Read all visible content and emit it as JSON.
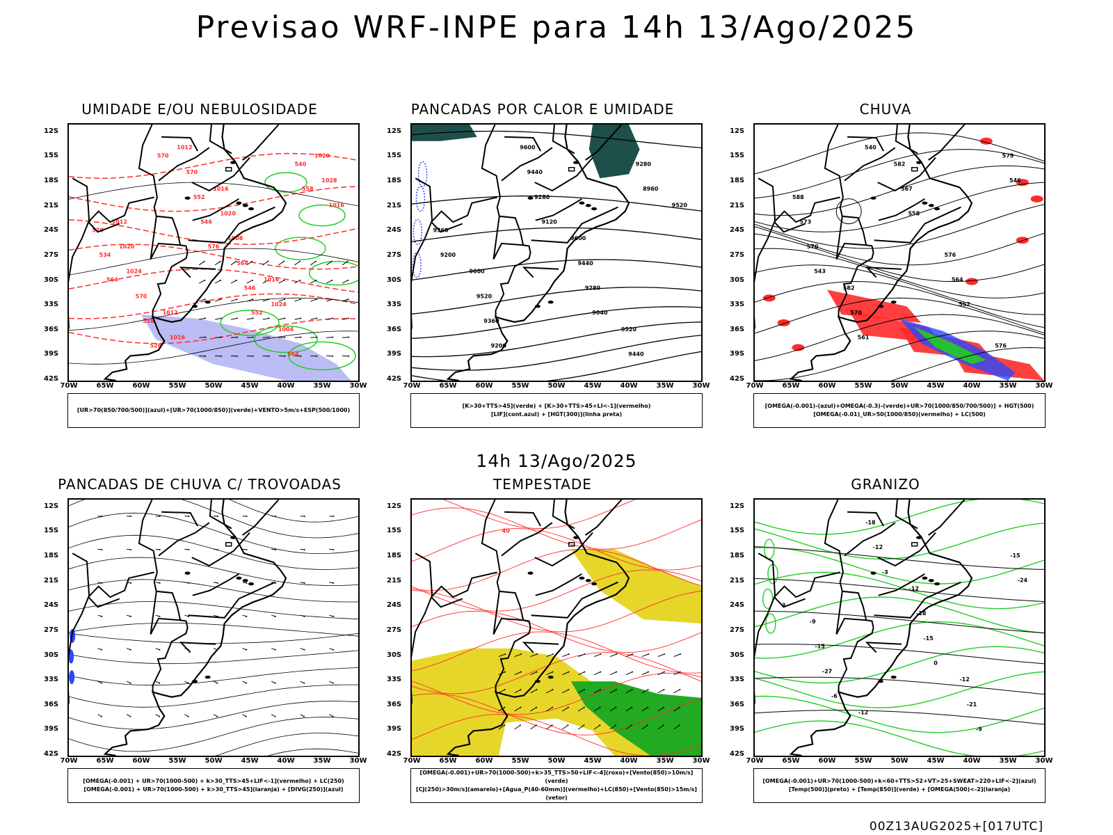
{
  "title": "Previsao WRF-INPE  para 14h 13/Ago/2025",
  "mid_label": "14h 13/Ago/2025",
  "footer": "00Z13AUG2025+[017UTC]",
  "lat_ticks": [
    "12S",
    "15S",
    "18S",
    "21S",
    "24S",
    "27S",
    "30S",
    "33S",
    "36S",
    "39S",
    "42S"
  ],
  "lon_ticks": [
    "70W",
    "65W",
    "60W",
    "55W",
    "50W",
    "45W",
    "40W",
    "35W",
    "30W"
  ],
  "colors": {
    "red": "#ff2a2a",
    "green": "#22cc22",
    "blue": "#2a48ff",
    "lavender": "#a6a6f0",
    "yellow": "#e6d62a",
    "teal": "#1f4f4a",
    "black": "#000000"
  },
  "panels": [
    {
      "title": "UMIDADE E/OU NEBULOSIDADE",
      "legend": [
        "[UR>70(850/700/500)](azul)+[UR>70(1000/850)](verde)+VENTO>5m/s+ESP(500/1000)"
      ],
      "labels": [
        "1012",
        "1012",
        "1016",
        "1016",
        "1020",
        "1020",
        "1016",
        "1020",
        "1024",
        "1028",
        "1024",
        "1012",
        "1008",
        "1004",
        "1016",
        "570",
        "570",
        "564",
        "564",
        "570",
        "558",
        "552",
        "546",
        "540",
        "534",
        "528",
        "546",
        "552",
        "558",
        "564",
        "570",
        "576"
      ]
    },
    {
      "title": "PANCADAS POR CALOR E UMIDADE",
      "legend": [
        "[K>30+TTS>45](verde) + [K>30+TTS>45+LI<-1](vermelho)",
        "[LIF](cont.azul) + [HGT(300)](linha preta)"
      ],
      "labels": [
        "9600",
        "9600",
        "9600",
        "9520",
        "9520",
        "9520",
        "9440",
        "9440",
        "9440",
        "9360",
        "9360",
        "9280",
        "9280",
        "9280",
        "9200",
        "9200",
        "9120",
        "9040",
        "8960"
      ]
    },
    {
      "title": "CHUVA",
      "legend": [
        "[OMEGA(-0.001)-(azul)+OMEGA(-0.3)-(verde)+UR>70(1000/850/700/500)] + HGT(500)",
        "[OMEGA(-0.01)_UR>50(1000/850)(vermelho) + LC(500)"
      ],
      "labels": [
        "588",
        "582",
        "582",
        "576",
        "576",
        "573",
        "570",
        "567",
        "564",
        "579",
        "570",
        "561",
        "558",
        "552",
        "546",
        "543",
        "540"
      ]
    },
    {
      "title": "PANCADAS DE CHUVA C/ TROVOADAS",
      "legend": [
        "[OMEGA(-0.001) + UR>70(1000-500) + k>30_TTS>45+LIF<-1](vermelho) + LC(250)",
        "[OMEGA(-0.001) + UR>70(1000-500) + k>30_TTS>45](laranja) + [DIVG(250)](azul)"
      ],
      "labels": []
    },
    {
      "title": "TEMPESTADE",
      "legend": [
        "[OMEGA(-0.001)+UR>70(1000-500)+k>35_TTS>50+LIF<-4](roxo)+[Vento(850)>10m/s](verde)",
        "[CJ(250)>30m/s](amarelo)+[Agua_P(40-60mm)](vermelho)+LC(850)+[Vento(850)>15m/s](vetor)"
      ],
      "labels": [
        "40"
      ]
    },
    {
      "title": "GRANIZO",
      "legend": [
        "[OMEGA(-0.001)+UR>70(1000-500)+k<60+TTS>52+VT>25+SWEAT>220+LIF<-2](azul)",
        "[Temp(500)](preto) + [Temp(850)](verde) + [OMEGA(500)<-2](laranja)"
      ],
      "labels": [
        "-9",
        "-12",
        "-12",
        "-12",
        "-15",
        "-15",
        "-18",
        "-18",
        "-21",
        "-24",
        "-27",
        "-12",
        "-15",
        "-9",
        "3",
        "-6",
        "-3",
        "0"
      ]
    }
  ]
}
